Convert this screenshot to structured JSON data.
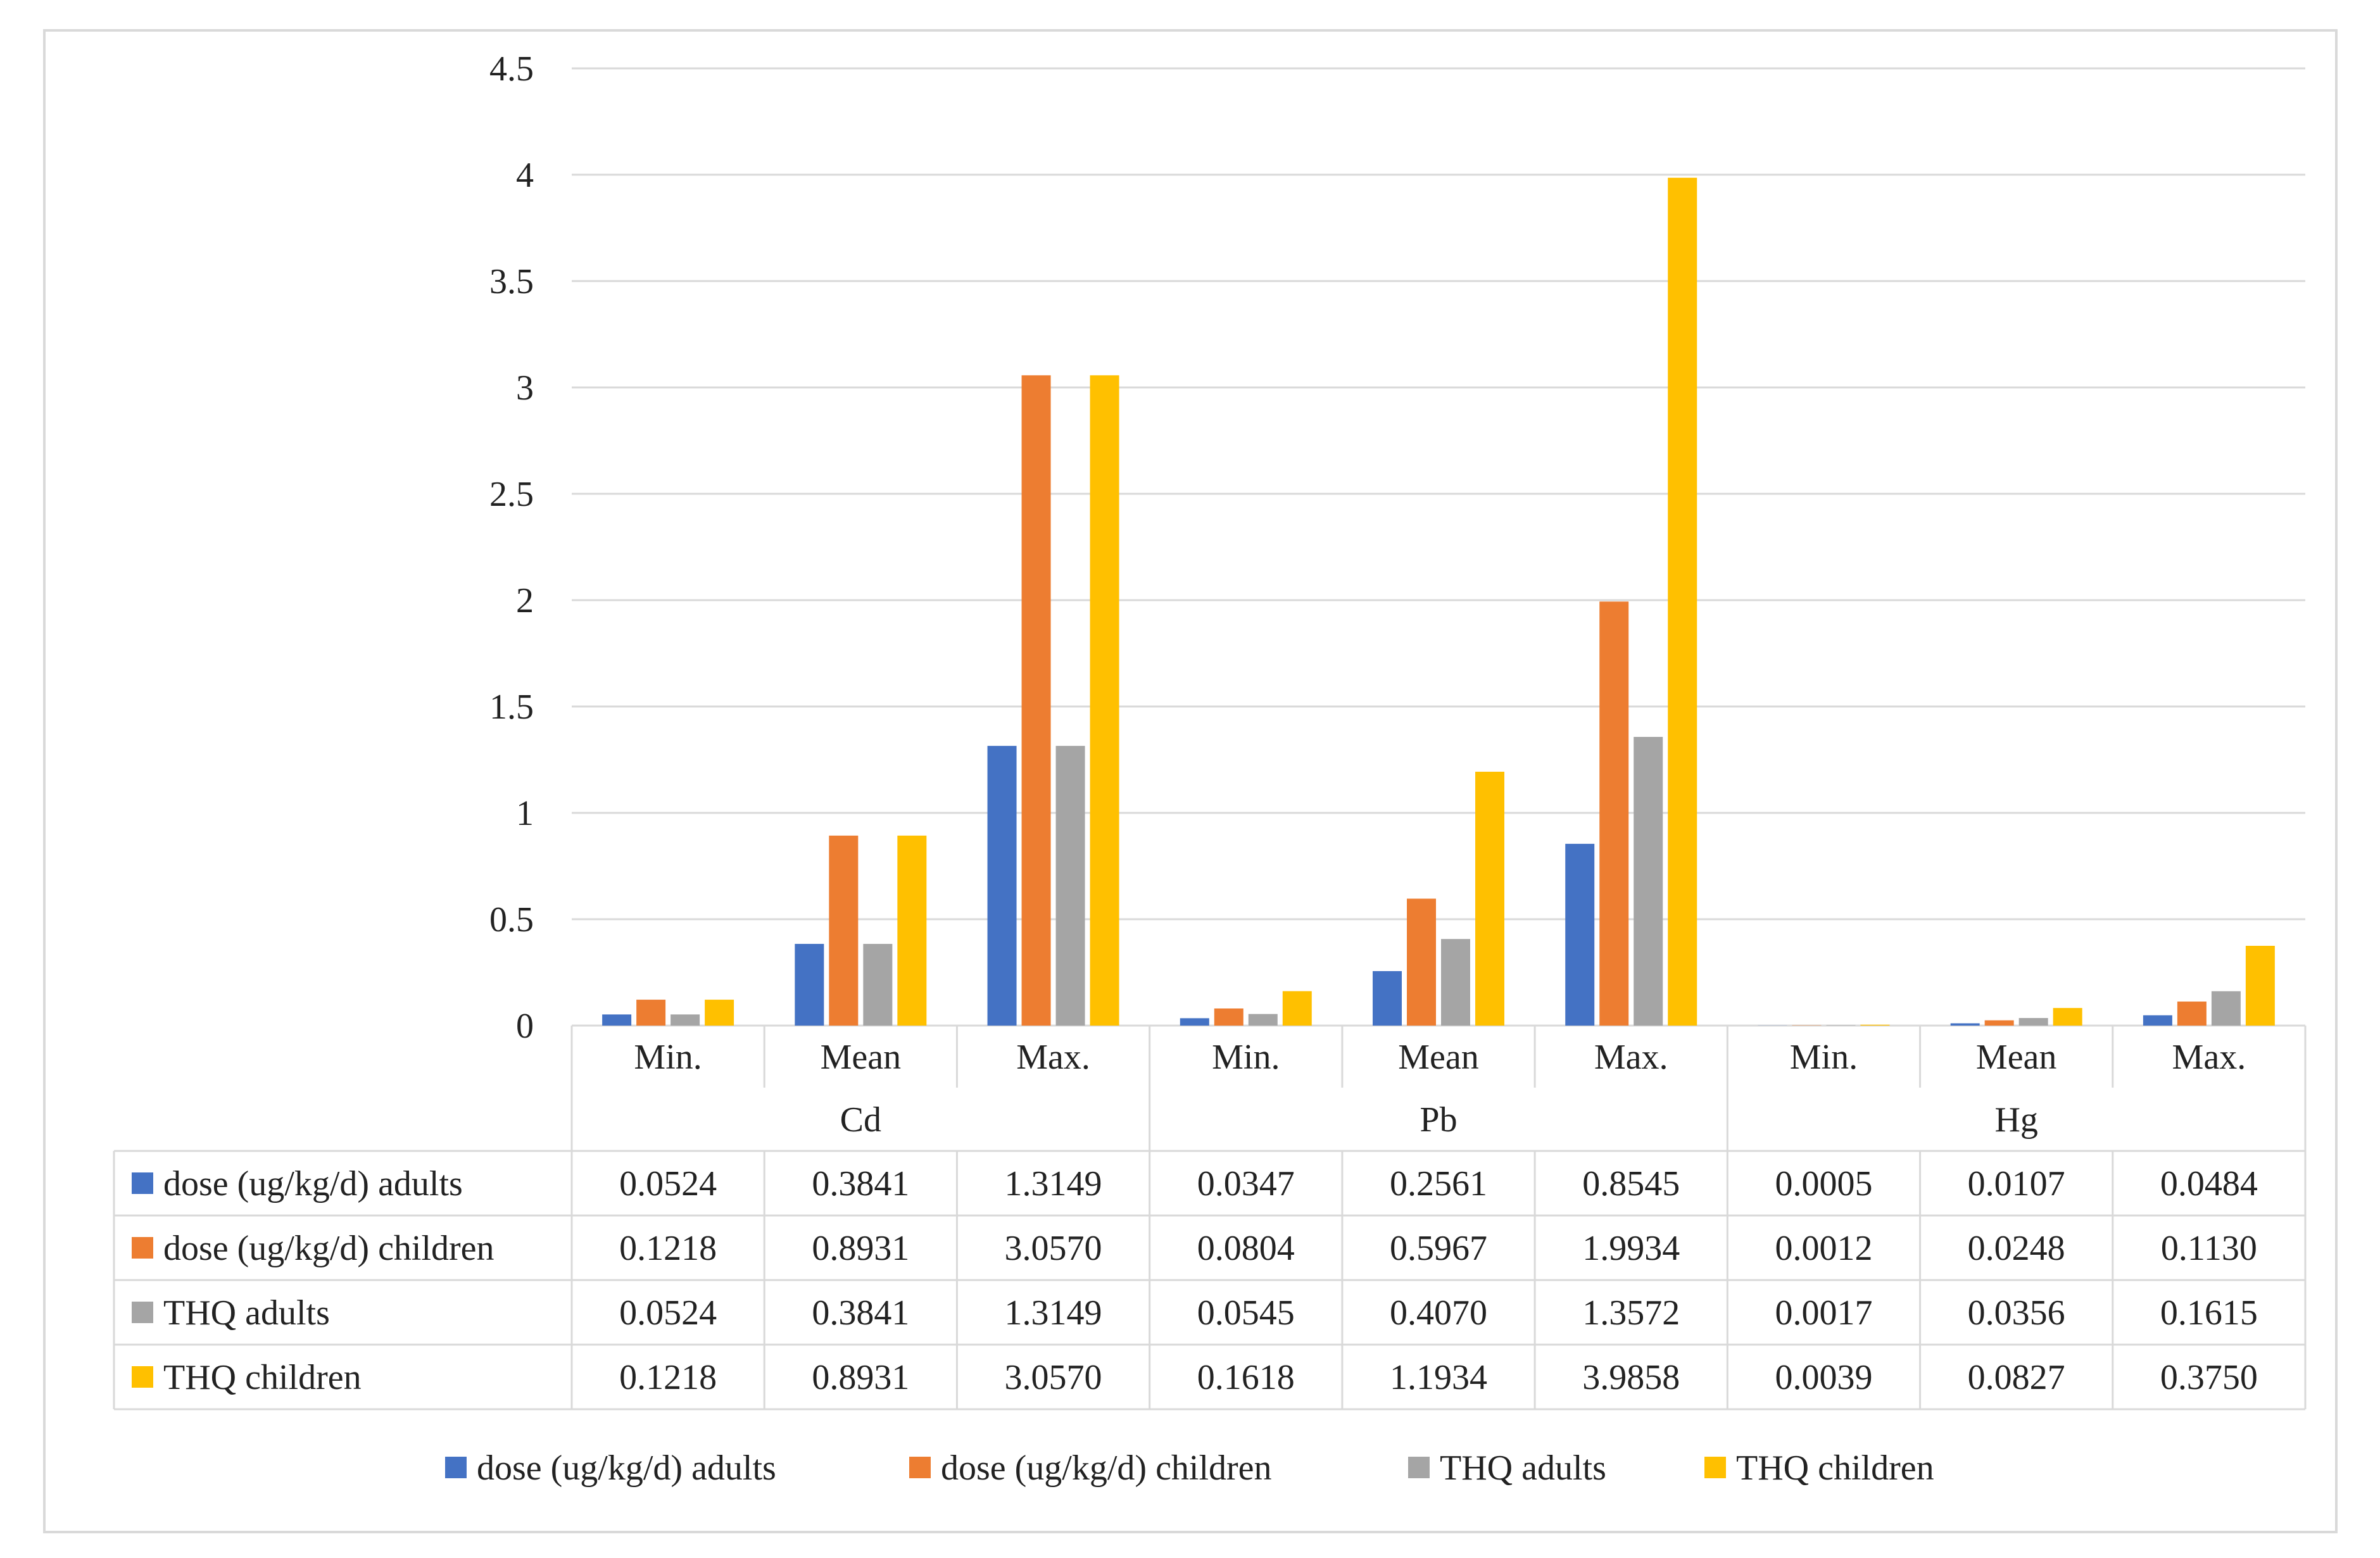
{
  "chart_data": {
    "type": "bar",
    "title": "",
    "xlabel": "",
    "ylabel": "",
    "ylim": [
      0,
      4.5
    ],
    "yticks": [
      0,
      0.5,
      1,
      1.5,
      2,
      2.5,
      3,
      3.5,
      4,
      4.5
    ],
    "ytick_labels": [
      "0",
      "0.5",
      "1",
      "1.5",
      "2",
      "2.5",
      "3",
      "3.5",
      "4",
      "4.5"
    ],
    "groups": [
      {
        "label": "Cd",
        "categories": [
          "Min.",
          "Mean",
          "Max."
        ]
      },
      {
        "label": "Pb",
        "categories": [
          "Min.",
          "Mean",
          "Max."
        ]
      },
      {
        "label": "Hg",
        "categories": [
          "Min.",
          "Mean",
          "Max."
        ]
      }
    ],
    "categories": [
      "Min.",
      "Mean",
      "Max.",
      "Min.",
      "Mean",
      "Max.",
      "Min.",
      "Mean",
      "Max."
    ],
    "series": [
      {
        "name": "dose  (ug/kg/d) adults",
        "color": "#4472C4",
        "values": [
          0.0524,
          0.3841,
          1.3149,
          0.0347,
          0.2561,
          0.8545,
          0.0005,
          0.0107,
          0.0484
        ],
        "labels": [
          "0.0524",
          "0.3841",
          "1.3149",
          "0.0347",
          "0.2561",
          "0.8545",
          "0.0005",
          "0.0107",
          "0.0484"
        ]
      },
      {
        "name": "dose  (ug/kg/d) children",
        "color": "#ED7D31",
        "values": [
          0.1218,
          0.8931,
          3.057,
          0.0804,
          0.5967,
          1.9934,
          0.0012,
          0.0248,
          0.113
        ],
        "labels": [
          "0.1218",
          "0.8931",
          "3.0570",
          "0.0804",
          "0.5967",
          "1.9934",
          "0.0012",
          "0.0248",
          "0.1130"
        ]
      },
      {
        "name": "THQ adults",
        "color": "#A5A5A5",
        "values": [
          0.0524,
          0.3841,
          1.3149,
          0.0545,
          0.407,
          1.3572,
          0.0017,
          0.0356,
          0.1615
        ],
        "labels": [
          "0.0524",
          "0.3841",
          "1.3149",
          "0.0545",
          "0.4070",
          "1.3572",
          "0.0017",
          "0.0356",
          "0.1615"
        ]
      },
      {
        "name": "THQ children",
        "color": "#FFC000",
        "values": [
          0.1218,
          0.8931,
          3.057,
          0.1618,
          1.1934,
          3.9858,
          0.0039,
          0.0827,
          0.375
        ],
        "labels": [
          "0.1218",
          "0.8931",
          "3.0570",
          "0.1618",
          "1.1934",
          "3.9858",
          "0.0039",
          "0.0827",
          "0.3750"
        ]
      }
    ],
    "grid": true,
    "legend_position": "bottom",
    "data_table": true
  }
}
